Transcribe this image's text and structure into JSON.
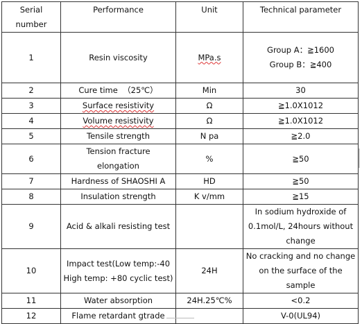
{
  "headers": {
    "serial_line1": "Serial",
    "serial_line2": "number",
    "performance": "Performance",
    "unit": "Unit",
    "parameter": "Technical parameter"
  },
  "rows": [
    {
      "serial": "1",
      "performance": "Resin viscosity",
      "unit": "MPa.s",
      "param_line1": "Group A：≧1600",
      "param_line2": "Group B：≧400"
    },
    {
      "serial": "2",
      "performance": "Cure time  （25℃）",
      "unit": "Min",
      "param": "30"
    },
    {
      "serial": "3",
      "performance": "Surface resistivity",
      "unit": "Ω",
      "param": "≧1.0X1012"
    },
    {
      "serial": "4",
      "performance": "Volume resistivity",
      "unit": "Ω",
      "param": "≧1.0X1012"
    },
    {
      "serial": "5",
      "performance": "Tensile strength",
      "unit": "N pa",
      "param": "≧2.0"
    },
    {
      "serial": "6",
      "performance_line1": "Tension fracture",
      "performance_line2": "elongation",
      "unit": "%",
      "param": "≧50"
    },
    {
      "serial": "7",
      "performance": "Hardness of SHAOSHI A",
      "unit": "HD",
      "param": "≧50"
    },
    {
      "serial": "8",
      "performance": "Insulation strength",
      "unit": "K v/mm",
      "param": "≧15"
    },
    {
      "serial": "9",
      "performance": "Acid & alkali resisting test",
      "unit": "",
      "param_line1": "In sodium hydroxide of",
      "param_line2": "0.1mol/L, 24hours without",
      "param_line3": "change"
    },
    {
      "serial": "10",
      "performance_line1": "Impact test(Low temp:-40",
      "performance_line2": "High temp: +80 cyclic test)",
      "unit": "24H",
      "param_line1": "No cracking and no change",
      "param_line2": "on the surface of the",
      "param_line3": "sample"
    },
    {
      "serial": "11",
      "performance": "Water absorption",
      "unit": "24H.25℃%",
      "param": "<0.2"
    },
    {
      "serial": "12",
      "performance": "Flame retardant gtrade",
      "unit": "",
      "param": "V-0(UL94)"
    }
  ]
}
